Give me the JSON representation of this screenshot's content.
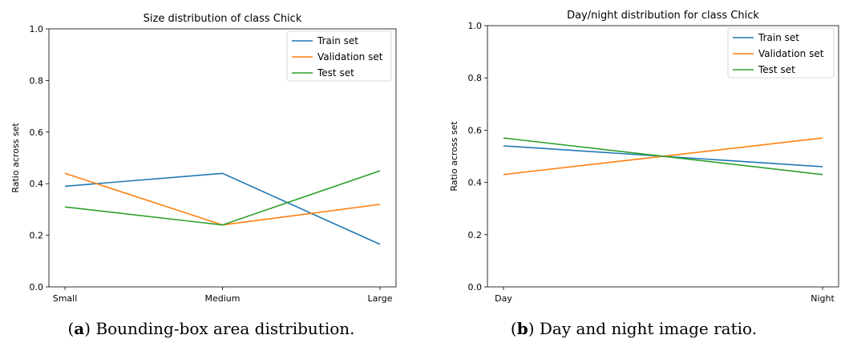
{
  "chart_data": [
    {
      "type": "line",
      "title": "Size distribution of class Chick",
      "xlabel": "",
      "ylabel": "Ratio across set",
      "categories": [
        "Small",
        "Medium",
        "Large"
      ],
      "ylim": [
        0,
        1
      ],
      "yticks": [
        "0.0",
        "0.2",
        "0.4",
        "0.6",
        "0.8",
        "1.0"
      ],
      "grid": false,
      "legend_position": "top-right",
      "series": [
        {
          "name": "Train set",
          "color": "#1f77b4",
          "values": [
            0.39,
            0.44,
            0.165
          ]
        },
        {
          "name": "Validation set",
          "color": "#ff7f0e",
          "values": [
            0.44,
            0.24,
            0.32
          ]
        },
        {
          "name": "Test set",
          "color": "#2ca02c",
          "values": [
            0.31,
            0.24,
            0.45
          ]
        }
      ],
      "caption_label": "a",
      "caption_text": "Bounding-box area distribution."
    },
    {
      "type": "line",
      "title": "Day/night distribution for class Chick",
      "xlabel": "",
      "ylabel": "Ratio across set",
      "categories": [
        "Day",
        "Night"
      ],
      "ylim": [
        0,
        1
      ],
      "yticks": [
        "0.0",
        "0.2",
        "0.4",
        "0.6",
        "0.8",
        "1.0"
      ],
      "grid": false,
      "legend_position": "top-right",
      "series": [
        {
          "name": "Train set",
          "color": "#1f77b4",
          "values": [
            0.54,
            0.46
          ]
        },
        {
          "name": "Validation set",
          "color": "#ff7f0e",
          "values": [
            0.43,
            0.57
          ]
        },
        {
          "name": "Test set",
          "color": "#2ca02c",
          "values": [
            0.57,
            0.43
          ]
        }
      ],
      "caption_label": "b",
      "caption_text": "Day and night image ratio."
    }
  ]
}
